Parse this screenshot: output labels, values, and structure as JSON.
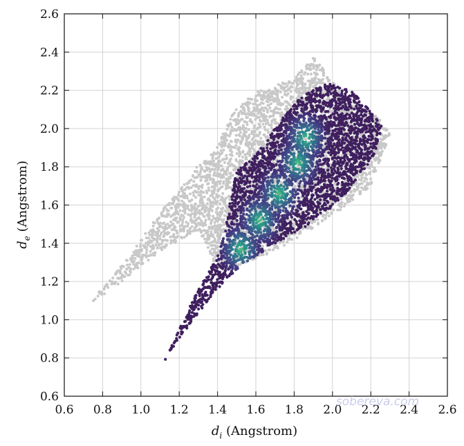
{
  "chart_data": {
    "type": "scatter",
    "xlabel": {
      "var": "d",
      "sub": "i",
      "unit": "(Angstrom)"
    },
    "ylabel": {
      "var": "d",
      "sub": "e",
      "unit": "(Angstrom)"
    },
    "xlim": [
      0.6,
      2.6
    ],
    "ylim": [
      0.6,
      2.6
    ],
    "xticks": [
      "0.6",
      "0.8",
      "1.0",
      "1.2",
      "1.4",
      "1.6",
      "1.8",
      "2.0",
      "2.2",
      "2.4",
      "2.6"
    ],
    "yticks": [
      "0.6",
      "0.8",
      "1.0",
      "1.2",
      "1.4",
      "1.6",
      "1.8",
      "2.0",
      "2.2",
      "2.4",
      "2.6"
    ],
    "grid": true,
    "background_color": "#b3b3b3",
    "foreground_colormap": [
      "#3f1f5e",
      "#433a82",
      "#3b5b8c",
      "#2e7d8e",
      "#2aa187",
      "#5ec07e"
    ],
    "series": [
      {
        "role": "background",
        "color": "#c8c8c8",
        "outline": [
          [
            0.73,
            1.08
          ],
          [
            0.9,
            1.2
          ],
          [
            1.1,
            1.36
          ],
          [
            1.3,
            1.47
          ],
          [
            1.4,
            1.26
          ],
          [
            1.5,
            1.28
          ],
          [
            1.7,
            1.36
          ],
          [
            1.9,
            1.48
          ],
          [
            2.05,
            1.58
          ],
          [
            2.2,
            1.7
          ],
          [
            2.3,
            1.97
          ],
          [
            2.25,
            2.05
          ],
          [
            2.05,
            2.18
          ],
          [
            1.9,
            2.38
          ],
          [
            1.8,
            2.26
          ],
          [
            1.62,
            2.2
          ],
          [
            1.5,
            2.12
          ],
          [
            1.38,
            1.88
          ],
          [
            1.29,
            1.8
          ],
          [
            1.2,
            1.68
          ],
          [
            1.1,
            1.56
          ],
          [
            0.93,
            1.32
          ],
          [
            0.74,
            1.1
          ]
        ]
      },
      {
        "role": "foreground",
        "color": "#3f1f5e",
        "outline": [
          [
            1.09,
            0.73
          ],
          [
            1.2,
            0.9
          ],
          [
            1.35,
            1.1
          ],
          [
            1.45,
            1.22
          ],
          [
            1.55,
            1.3
          ],
          [
            1.7,
            1.4
          ],
          [
            1.85,
            1.48
          ],
          [
            1.95,
            1.56
          ],
          [
            2.02,
            1.6
          ],
          [
            2.1,
            1.7
          ],
          [
            2.22,
            1.86
          ],
          [
            2.26,
            2.02
          ],
          [
            2.1,
            2.2
          ],
          [
            1.97,
            2.24
          ],
          [
            1.84,
            2.17
          ],
          [
            1.72,
            2.03
          ],
          [
            1.6,
            1.86
          ],
          [
            1.5,
            1.78
          ],
          [
            1.46,
            1.6
          ],
          [
            1.44,
            1.45
          ],
          [
            1.38,
            1.3
          ],
          [
            1.27,
            1.1
          ],
          [
            1.13,
            0.8
          ]
        ],
        "density_peaks": [
          [
            1.52,
            1.37
          ],
          [
            1.62,
            1.52
          ],
          [
            1.72,
            1.66
          ],
          [
            1.82,
            1.82
          ],
          [
            1.86,
            1.95
          ]
        ]
      }
    ]
  },
  "watermark": "sobereva.com"
}
